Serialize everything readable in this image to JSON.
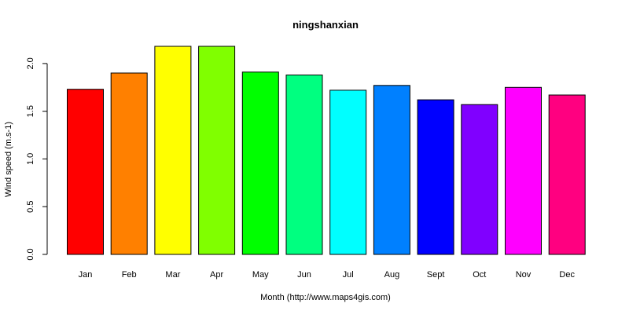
{
  "chart_data": {
    "type": "bar",
    "title": "ningshanxian",
    "xlabel": "Month (http://www.maps4gis.com)",
    "ylabel": "Wind speed (m.s-1)",
    "categories": [
      "Jan",
      "Feb",
      "Mar",
      "Apr",
      "May",
      "Jun",
      "Jul",
      "Aug",
      "Sept",
      "Oct",
      "Nov",
      "Dec"
    ],
    "values": [
      1.73,
      1.9,
      2.18,
      2.18,
      1.91,
      1.88,
      1.72,
      1.77,
      1.62,
      1.57,
      1.75,
      1.67
    ],
    "colors": [
      "#FF0000",
      "#FF8000",
      "#FFFF00",
      "#80FF00",
      "#00FF00",
      "#00FF80",
      "#00FFFF",
      "#0080FF",
      "#0000FF",
      "#8000FF",
      "#FF00FF",
      "#FF0080"
    ],
    "ylim": [
      0,
      2.18
    ],
    "yticks": [
      0.0,
      0.5,
      1.0,
      1.5,
      2.0
    ],
    "ytick_labels": [
      "0.0",
      "0.5",
      "1.0",
      "1.5",
      "2.0"
    ],
    "grid": false,
    "legend": "none"
  }
}
